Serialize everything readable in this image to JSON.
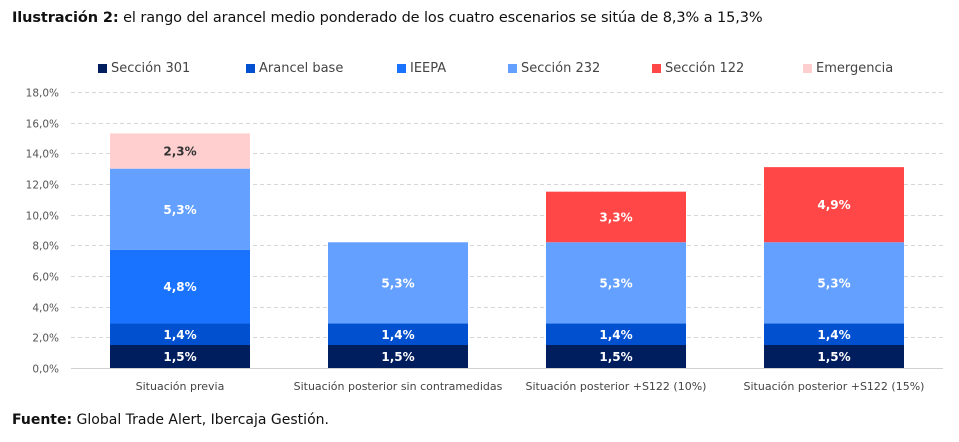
{
  "header": {
    "title_bold": "Ilustración 2:",
    "title_rest": " el rango del arancel medio ponderado de los cuatro escenarios se sitúa de 8,3% a 15,3%"
  },
  "footer": {
    "source_bold": "Fuente:",
    "source_rest": " Global Trade Alert, Ibercaja Gestión."
  },
  "chart_data": {
    "type": "bar",
    "stacked": true,
    "title": "el rango del arancel medio ponderado de los cuatro escenarios se sitúa de 8,3% a 15,3%",
    "xlabel": "",
    "ylabel": "",
    "ylim": [
      0,
      18
    ],
    "yticks": [
      0,
      2,
      4,
      6,
      8,
      10,
      12,
      14,
      16,
      18
    ],
    "ytick_labels": [
      "0,0%",
      "2,0%",
      "4,0%",
      "6,0%",
      "8,0%",
      "10,0%",
      "12,0%",
      "14,0%",
      "16,0%",
      "18,0%"
    ],
    "grid": "horizontal-dashed",
    "legend_position": "top",
    "categories": [
      "Situación previa",
      "Situación posterior sin contramedidas",
      "Situación posterior +S122 (10%)",
      "Situación posterior +S122 (15%)"
    ],
    "series": [
      {
        "name": "Sección 301",
        "color": "#001E5E",
        "label_color": "#ffffff",
        "values": [
          1.5,
          1.5,
          1.5,
          1.5
        ],
        "labels": [
          "1,5%",
          "1,5%",
          "1,5%",
          "1,5%"
        ]
      },
      {
        "name": "Arancel base",
        "color": "#0050D0",
        "label_color": "#ffffff",
        "values": [
          1.4,
          1.4,
          1.4,
          1.4
        ],
        "labels": [
          "1,4%",
          "1,4%",
          "1,4%",
          "1,4%"
        ]
      },
      {
        "name": "IEEPA",
        "color": "#1A73FF",
        "label_color": "#ffffff",
        "values": [
          4.8,
          0,
          0,
          0
        ],
        "labels": [
          "4,8%",
          "",
          "",
          ""
        ]
      },
      {
        "name": "Sección 232",
        "color": "#64A0FF",
        "label_color": "#ffffff",
        "values": [
          5.3,
          5.3,
          5.3,
          5.3
        ],
        "labels": [
          "5,3%",
          "5,3%",
          "5,3%",
          "5,3%"
        ]
      },
      {
        "name": "Sección 122",
        "color": "#FF4747",
        "label_color": "#ffffff",
        "values": [
          0,
          0,
          3.3,
          4.9
        ],
        "labels": [
          "",
          "",
          "3,3%",
          "4,9%"
        ]
      },
      {
        "name": "Emergencia",
        "color": "#FFCFCF",
        "label_color": "#333333",
        "values": [
          2.3,
          0,
          0,
          0
        ],
        "labels": [
          "2,3%",
          "",
          "",
          ""
        ]
      }
    ]
  }
}
